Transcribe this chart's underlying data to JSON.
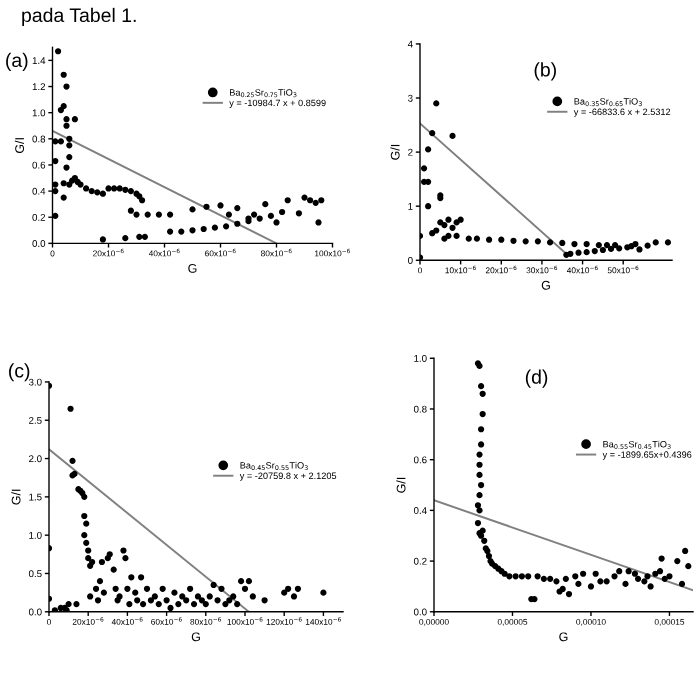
{
  "chart_data": [
    {
      "type": "scatter",
      "xlabel": "G",
      "ylabel": "G/I",
      "legend": "top right",
      "annotations": [
        "(a)",
        "pada Tabel 1."
      ],
      "xlim": [
        0,
        0.0001
      ],
      "ylim": [
        0,
        1.5
      ],
      "xticks": [
        {
          "value": 0,
          "label": "0"
        },
        {
          "value": 2e-05,
          "label": "20x10$^{−6}$"
        },
        {
          "value": 4e-05,
          "label": "40x10$^{−6}$"
        },
        {
          "value": 6e-05,
          "label": "60x10$^{−6}$"
        },
        {
          "value": 8e-05,
          "label": "80x10$^{−6}$"
        },
        {
          "value": 0.0001,
          "label": "100x10$^{−6}$"
        }
      ],
      "yticks": [
        {
          "value": 0,
          "label": "0.0"
        },
        {
          "value": 0.2,
          "label": "0.2"
        },
        {
          "value": 0.4,
          "label": "0.4"
        },
        {
          "value": 0.6,
          "label": "0.6"
        },
        {
          "value": 0.8,
          "label": "0.8"
        },
        {
          "value": 1.0,
          "label": "1.0"
        },
        {
          "value": 1.2,
          "label": "1.2"
        },
        {
          "value": 1.4,
          "label": "1.4"
        }
      ],
      "series": [
        {
          "name": "Ba$_{0.25}$Sr$_{0.75}$TiO$_{3}$",
          "marker": "circle",
          "color": "#000000",
          "x": [
            2e-06,
            3e-06,
            1e-06,
            1e-06,
            1e-06,
            1e-06,
            1e-06,
            4e-06,
            5e-06,
            4e-06,
            3e-06,
            5e-06,
            5e-06,
            6e-06,
            6e-06,
            6e-06,
            5e-06,
            4e-06,
            4e-06,
            6e-06,
            8e-06,
            7e-06,
            8e-06,
            9e-06,
            1e-05,
            1.2e-05,
            1.4e-05,
            1.6e-05,
            1.8e-05,
            2e-05,
            2.2e-05,
            2.4e-05,
            2.6e-05,
            2.8e-05,
            3e-05,
            3.1e-05,
            3.2e-05,
            2.8e-05,
            3e-05,
            3.4e-05,
            3.8e-05,
            4.2e-05,
            1.8e-05,
            2.6e-05,
            3.1e-05,
            3.3e-05,
            4.2e-05,
            4.6e-05,
            5e-05,
            5.4e-05,
            5.8e-05,
            6.2e-05,
            6.6e-05,
            7e-05,
            7.4e-05,
            7.8e-05,
            5e-05,
            5.5e-05,
            6e-05,
            6.3e-05,
            6.6e-05,
            7e-05,
            7.2e-05,
            7.6e-05,
            8e-05,
            8.2e-05,
            8.4e-05,
            8.8e-05,
            9e-05,
            9.2e-05,
            9.4e-05,
            9.6e-05,
            9.5e-05
          ],
          "values": [
            1.47,
            0.78,
            0.78,
            0.63,
            0.45,
            0.4,
            0.21,
            1.29,
            1.2,
            1.05,
            1.02,
            0.95,
            0.9,
            0.8,
            0.75,
            0.66,
            0.58,
            0.46,
            0.35,
            0.45,
            0.95,
            0.48,
            0.5,
            0.47,
            0.45,
            0.42,
            0.4,
            0.39,
            0.38,
            0.42,
            0.42,
            0.42,
            0.41,
            0.4,
            0.38,
            0.36,
            0.33,
            0.25,
            0.22,
            0.22,
            0.22,
            0.22,
            0.03,
            0.04,
            0.05,
            0.05,
            0.09,
            0.09,
            0.1,
            0.11,
            0.12,
            0.13,
            0.15,
            0.17,
            0.19,
            0.21,
            0.26,
            0.28,
            0.29,
            0.22,
            0.27,
            0.19,
            0.22,
            0.3,
            0.16,
            0.24,
            0.33,
            0.23,
            0.35,
            0.33,
            0.31,
            0.33,
            0.16
          ]
        },
        {
          "name": "y = -10984.7 x + 0.8599",
          "type": "line",
          "color": "#808080",
          "x": [
            0,
            8e-05
          ],
          "values": [
            0.86,
            0.0
          ]
        }
      ]
    },
    {
      "type": "scatter",
      "xlabel": "G",
      "ylabel": "G/I",
      "legend": "top right",
      "annotations": [
        "(b)"
      ],
      "xlim": [
        0,
        6.2e-05
      ],
      "ylim": [
        0,
        4
      ],
      "xticks": [
        {
          "value": 0,
          "label": "0"
        },
        {
          "value": 1e-05,
          "label": "10x10$^{−6}$"
        },
        {
          "value": 2e-05,
          "label": "20x10$^{−6}$"
        },
        {
          "value": 3e-05,
          "label": "30x10$^{−6}$"
        },
        {
          "value": 4e-05,
          "label": "40x10$^{−6}$"
        },
        {
          "value": 5e-05,
          "label": "50x10$^{−6}$"
        }
      ],
      "yticks": [
        {
          "value": 0,
          "label": "0"
        },
        {
          "value": 1,
          "label": "1"
        },
        {
          "value": 2,
          "label": "2"
        },
        {
          "value": 3,
          "label": "3"
        },
        {
          "value": 4,
          "label": "4"
        }
      ],
      "series": [
        {
          "name": "Ba$_{0.35}$Sr$_{0.65}$TiO$_{3}$",
          "marker": "circle",
          "color": "#000000",
          "x": [
            0,
            0,
            1e-06,
            1e-06,
            2e-06,
            2e-06,
            2e-06,
            3e-06,
            3e-06,
            4e-06,
            4e-06,
            5e-06,
            5e-06,
            5e-06,
            6e-06,
            6e-06,
            7e-06,
            7e-06,
            8e-06,
            8e-06,
            9e-06,
            1e-05,
            9e-06,
            1.2e-05,
            1.4e-05,
            1.7e-05,
            2e-05,
            2.3e-05,
            2.6e-05,
            2.9e-05,
            3.2e-05,
            3.5e-05,
            3.8e-05,
            4.1e-05,
            4.4e-05,
            4.6e-05,
            4.8e-05,
            3.6e-05,
            3.7e-05,
            3.9e-05,
            4.1e-05,
            4.3e-05,
            4.5e-05,
            4.7e-05,
            4.9e-05,
            5.1e-05,
            5.2e-05,
            5.3e-05,
            5.4e-05,
            5.6e-05,
            5.8e-05,
            6.1e-05
          ],
          "values": [
            0.05,
            0.45,
            1.7,
            1.45,
            1.45,
            1.0,
            2.05,
            2.35,
            0.5,
            0.55,
            2.9,
            1.2,
            1.15,
            0.7,
            0.65,
            0.4,
            0.75,
            0.45,
            2.3,
            0.6,
            0.7,
            0.75,
            0.45,
            0.4,
            0.4,
            0.38,
            0.38,
            0.36,
            0.35,
            0.35,
            0.33,
            0.32,
            0.3,
            0.3,
            0.28,
            0.28,
            0.28,
            0.1,
            0.12,
            0.14,
            0.15,
            0.17,
            0.19,
            0.21,
            0.22,
            0.24,
            0.26,
            0.3,
            0.2,
            0.27,
            0.33,
            0.33
          ]
        },
        {
          "name": "y = -66833.6 x + 2.5312",
          "type": "line",
          "color": "#808080",
          "x": [
            0,
            3.6e-05
          ],
          "values": [
            2.53,
            0.12
          ]
        }
      ]
    },
    {
      "type": "scatter",
      "xlabel": "G",
      "ylabel": "G/I",
      "legend": "top right",
      "annotations": [
        "(c)"
      ],
      "xlim": [
        0,
        0.00015
      ],
      "ylim": [
        0,
        3.0
      ],
      "xticks": [
        {
          "value": 0,
          "label": "0"
        },
        {
          "value": 2e-05,
          "label": "20x10$^{−6}$"
        },
        {
          "value": 4e-05,
          "label": "40x10$^{−6}$"
        },
        {
          "value": 6e-05,
          "label": "60x10$^{−6}$"
        },
        {
          "value": 8e-05,
          "label": "80x10$^{−6}$"
        },
        {
          "value": 0.0001,
          "label": "100x10$^{−6}$"
        },
        {
          "value": 0.00012,
          "label": "120x10$^{−6}$"
        },
        {
          "value": 0.00014,
          "label": "140x10$^{−6}$"
        }
      ],
      "yticks": [
        {
          "value": 0,
          "label": "0.0"
        },
        {
          "value": 0.5,
          "label": "0.5"
        },
        {
          "value": 1.0,
          "label": "1.0"
        },
        {
          "value": 1.5,
          "label": "1.5"
        },
        {
          "value": 2.0,
          "label": "2.0"
        },
        {
          "value": 2.5,
          "label": "2.5"
        },
        {
          "value": 3.0,
          "label": "3.0"
        }
      ],
      "series": [
        {
          "name": "Ba$_{0.45}$Sr$_{0.55}$TiO$_{3}$",
          "marker": "circle",
          "color": "#000000",
          "x": [
            0,
            0,
            0,
            3e-06,
            6e-06,
            8e-06,
            9e-06,
            1e-05,
            1.1e-05,
            1.2e-05,
            1.2e-05,
            1.3e-05,
            1.4e-05,
            1.5e-05,
            1.6e-05,
            1.7e-05,
            1.8e-05,
            1.8e-05,
            1.8e-05,
            1.9e-05,
            1.9e-05,
            2e-05,
            2e-05,
            2.1e-05,
            2.2e-05,
            2.1e-05,
            2.4e-05,
            2.5e-05,
            2.6e-05,
            2.7e-05,
            2.8e-05,
            3e-05,
            3.1e-05,
            3.3e-05,
            3.4e-05,
            3.5e-05,
            3.6e-05,
            3.8e-05,
            3.9e-05,
            4e-05,
            4.1e-05,
            4.2e-05,
            4.4e-05,
            4.5e-05,
            4.7e-05,
            4.8e-05,
            5e-05,
            5.2e-05,
            5.4e-05,
            5.6e-05,
            5.8e-05,
            6e-05,
            6.2e-05,
            6.4e-05,
            6.6e-05,
            6.8e-05,
            7e-05,
            7.2e-05,
            7.4e-05,
            7.6e-05,
            7.8e-05,
            8e-05,
            8.2e-05,
            8.4e-05,
            8.6e-05,
            8.8e-05,
            9e-05,
            9.2e-05,
            9.4e-05,
            9.6e-05,
            9.8e-05,
            0.0001,
            0.000102,
            0.000104,
            0.00011,
            0.00012,
            0.000122,
            0.000125,
            0.000127,
            0.00014
          ],
          "values": [
            2.95,
            0.83,
            0.17,
            0.02,
            0.05,
            0.05,
            0.02,
            0.1,
            2.65,
            1.97,
            1.78,
            1.8,
            0.1,
            1.6,
            1.58,
            1.55,
            1.5,
            1.25,
            1.0,
            0.9,
            1.15,
            0.8,
            0.7,
            0.6,
            0.65,
            0.2,
            0.3,
            0.15,
            0.4,
            0.65,
            0.25,
            0.7,
            0.75,
            0.55,
            0.3,
            0.15,
            0.2,
            0.8,
            0.7,
            0.3,
            0.1,
            0.45,
            0.25,
            0.15,
            0.45,
            0.1,
            0.3,
            0.15,
            0.2,
            0.1,
            0.3,
            0.15,
            0.05,
            0.25,
            0.1,
            0.2,
            0.15,
            0.3,
            0.1,
            0.2,
            0.15,
            0.1,
            0.2,
            0.35,
            0.15,
            0.3,
            0.1,
            0.15,
            0.2,
            0.1,
            0.4,
            0.3,
            0.4,
            0.2,
            0.15,
            0.25,
            0.3,
            0.2,
            0.3,
            0.25
          ]
        },
        {
          "name": "y = -20759.8 x + 2.1205",
          "type": "line",
          "color": "#808080",
          "x": [
            0,
            0.000102
          ],
          "values": [
            2.12,
            0.0
          ]
        }
      ]
    },
    {
      "type": "scatter",
      "xlabel": "G",
      "ylabel": "G/I",
      "legend": "top right",
      "annotations": [
        "(d)"
      ],
      "xlim": [
        0,
        0.000165
      ],
      "ylim": [
        0,
        1.0
      ],
      "xticks": [
        {
          "value": 0,
          "label": "0,00000"
        },
        {
          "value": 5e-05,
          "label": "0,00005"
        },
        {
          "value": 0.0001,
          "label": "0,00010"
        },
        {
          "value": 0.00015,
          "label": "0,00015"
        }
      ],
      "yticks": [
        {
          "value": 0,
          "label": "0.0"
        },
        {
          "value": 0.2,
          "label": "0.2"
        },
        {
          "value": 0.4,
          "label": "0.4"
        },
        {
          "value": 0.6,
          "label": "0.6"
        },
        {
          "value": 0.8,
          "label": "0.8"
        },
        {
          "value": 1.0,
          "label": "1.0"
        }
      ],
      "series": [
        {
          "name": "Ba$_{0.55}$Sr$_{0.45}$TiO$_{3}$",
          "marker": "circle",
          "color": "#000000",
          "x": [
            2.8e-05,
            2.9e-05,
            3e-05,
            3.1e-05,
            3.1e-05,
            3e-05,
            3e-05,
            2.9e-05,
            2.9e-05,
            2.9e-05,
            3e-05,
            2.9e-05,
            2.8e-05,
            2.9e-05,
            2.8e-05,
            2.9e-05,
            3e-05,
            3.1e-05,
            3.2e-05,
            3.3e-05,
            3.4e-05,
            3.5e-05,
            3.6e-05,
            3.7e-05,
            3.9e-05,
            4.1e-05,
            4.3e-05,
            4.5e-05,
            4.8e-05,
            5.2e-05,
            5.6e-05,
            6e-05,
            6.2e-05,
            6.4e-05,
            6.6e-05,
            7e-05,
            7.4e-05,
            7.8e-05,
            8e-05,
            8.2e-05,
            8.4e-05,
            8.6e-05,
            9e-05,
            9.2e-05,
            9.5e-05,
            0.0001,
            0.000103,
            0.000106,
            0.00011,
            0.000115,
            0.000118,
            0.000122,
            0.000124,
            0.000128,
            0.00013,
            0.000134,
            0.000136,
            0.000138,
            0.000141,
            0.000144,
            0.000145,
            0.000147,
            0.00015,
            0.000155,
            0.00016,
            0.000162,
            0.000158
          ],
          "values": [
            0.98,
            0.97,
            0.89,
            0.86,
            0.78,
            0.72,
            0.66,
            0.62,
            0.58,
            0.54,
            0.5,
            0.46,
            0.42,
            0.4,
            0.35,
            0.31,
            0.3,
            0.32,
            0.28,
            0.25,
            0.24,
            0.22,
            0.2,
            0.19,
            0.18,
            0.17,
            0.16,
            0.15,
            0.14,
            0.14,
            0.14,
            0.14,
            0.05,
            0.05,
            0.14,
            0.13,
            0.13,
            0.12,
            0.08,
            0.09,
            0.13,
            0.07,
            0.14,
            0.11,
            0.15,
            0.1,
            0.15,
            0.12,
            0.12,
            0.14,
            0.16,
            0.11,
            0.16,
            0.15,
            0.13,
            0.12,
            0.14,
            0.1,
            0.15,
            0.16,
            0.21,
            0.13,
            0.14,
            0.2,
            0.24,
            0.18,
            0.11
          ]
        },
        {
          "name": "y = -1899.65x+0.4396",
          "type": "line",
          "color": "#808080",
          "x": [
            0,
            0.000165
          ],
          "values": [
            0.44,
            0.085
          ]
        }
      ]
    }
  ]
}
